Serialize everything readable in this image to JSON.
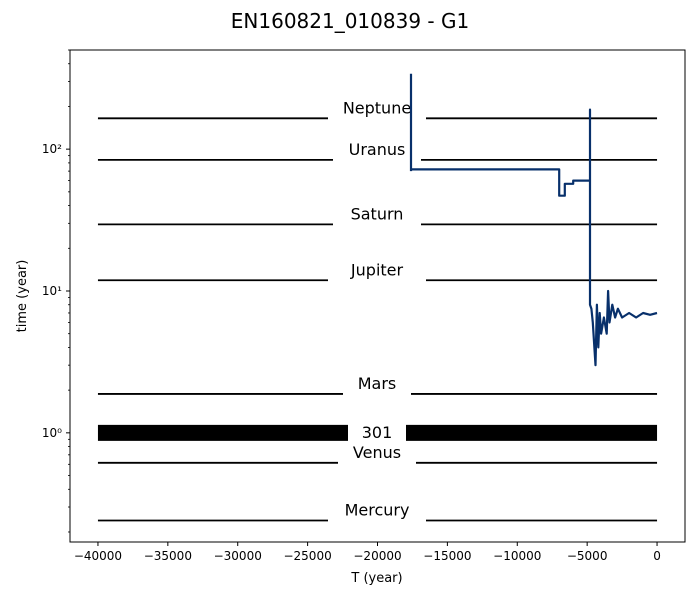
{
  "chart_data": {
    "type": "line",
    "title": "EN160821_010839 - G1",
    "xlabel": "T (year)",
    "ylabel": "time (year)",
    "xlim": [
      -42000,
      2000
    ],
    "ylim": [
      0.17,
      500
    ],
    "yscale": "log",
    "grid": false,
    "x_ticks": [
      -40000,
      -35000,
      -30000,
      -25000,
      -20000,
      -15000,
      -10000,
      -5000,
      0
    ],
    "x_tick_labels": [
      "−40000",
      "−35000",
      "−30000",
      "−25000",
      "−20000",
      "−15000",
      "−10000",
      "−5000",
      "0"
    ],
    "y_ticks": [
      1,
      10,
      100
    ],
    "y_tick_labels": [
      "10⁰",
      "10¹",
      "10²"
    ],
    "reference_lines": [
      {
        "label": "Neptune",
        "y": 165
      },
      {
        "label": "Uranus",
        "y": 84
      },
      {
        "label": "Saturn",
        "y": 29.5
      },
      {
        "label": "Jupiter",
        "y": 11.9
      },
      {
        "label": "Mars",
        "y": 1.88
      },
      {
        "label": "301",
        "y": 1.0,
        "thick": true
      },
      {
        "label": "Venus",
        "y": 0.615
      },
      {
        "label": "Mercury",
        "y": 0.241
      }
    ],
    "series": [
      {
        "color": "#08306b",
        "segments": [
          {
            "x": [
              -17600,
              -17600
            ],
            "y": [
              70,
              340
            ]
          },
          {
            "x": [
              -17600,
              -16000,
              -14000,
              -12000,
              -10000,
              -8000,
              -7000,
              -7000,
              -6600,
              -6600,
              -6000,
              -6000,
              -5000,
              -4800,
              -4800,
              -4800,
              -4700,
              -4600,
              -4400,
              -4300,
              -4200,
              -4100,
              -4000,
              -3800,
              -3600,
              -3500,
              -3400,
              -3200,
              -3000,
              -2800,
              -2500,
              -2000,
              -1500,
              -1000,
              -500,
              0
            ],
            "y": [
              72,
              72,
              72,
              72,
              72,
              72,
              72,
              47,
              47,
              57,
              57,
              60,
              60,
              60,
              190,
              8,
              7.5,
              6,
              3,
              8,
              4,
              7,
              5,
              6.5,
              5,
              10,
              6,
              8,
              6.5,
              7.5,
              6.5,
              7,
              6.5,
              7,
              6.8,
              7
            ]
          }
        ]
      }
    ]
  }
}
